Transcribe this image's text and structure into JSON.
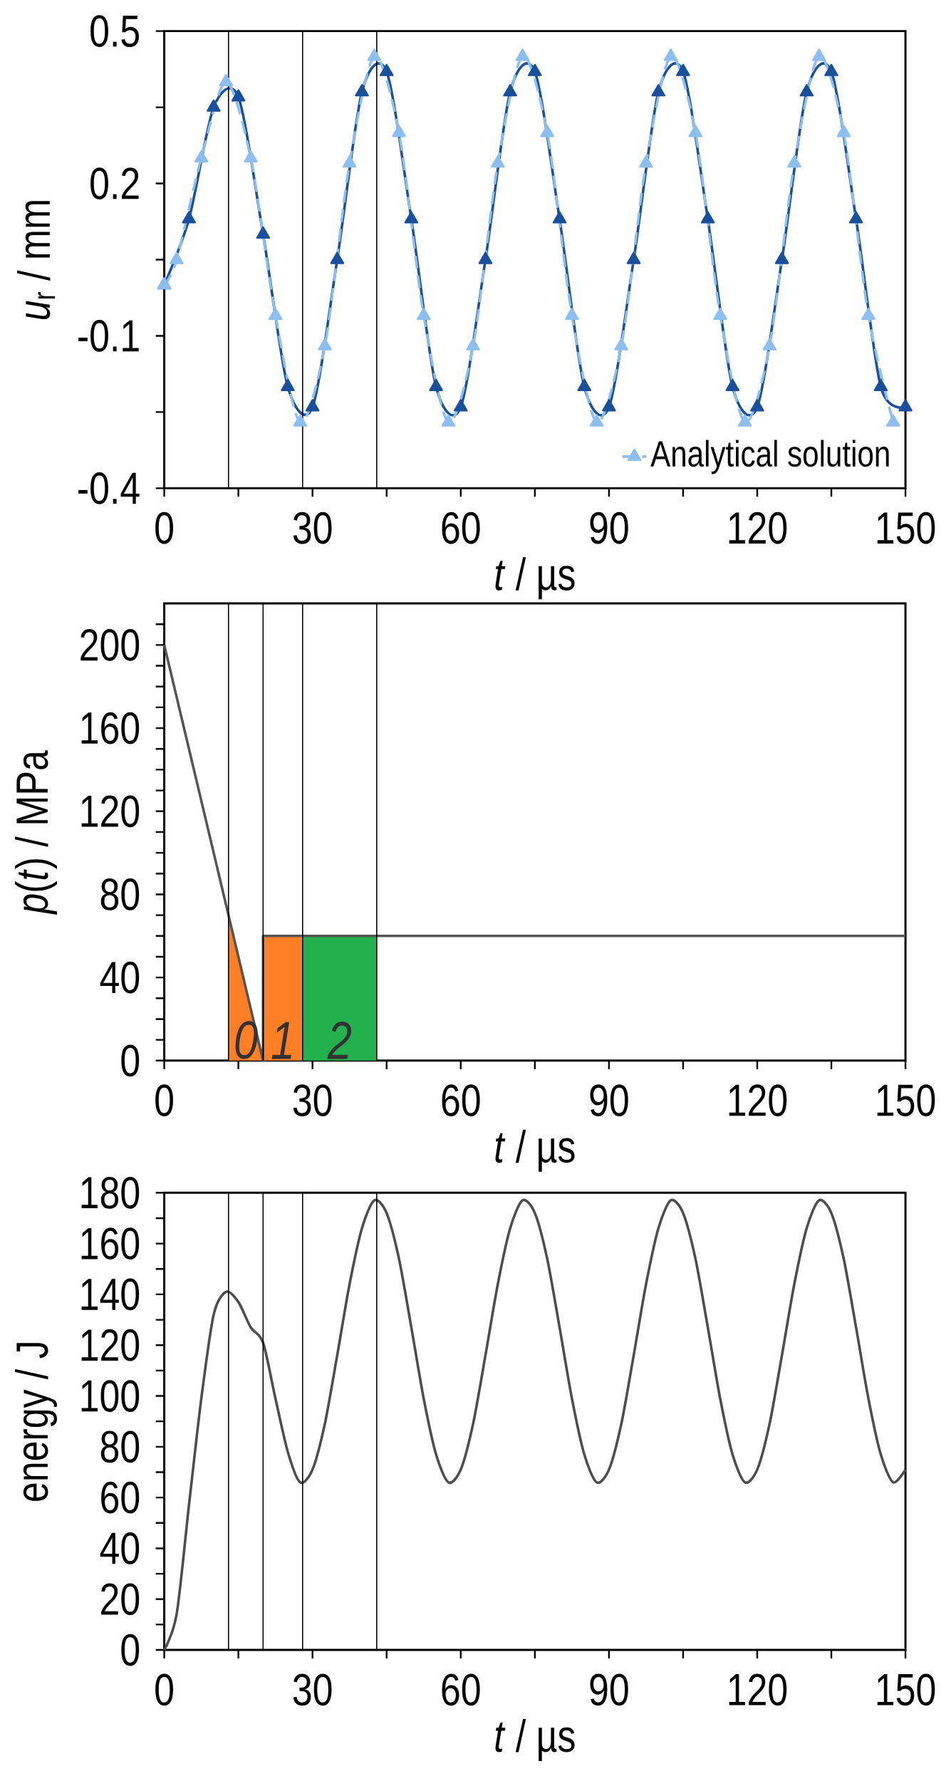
{
  "chart_data": [
    {
      "type": "line",
      "xlabel": "*t* / µs",
      "ylabel": "*u*$_{r}$ / mm",
      "xlim": [
        0,
        150
      ],
      "ylim": [
        -0.4,
        0.5
      ],
      "xticks": [
        0,
        {
          "value": 15,
          "label": null
        },
        30,
        {
          "value": 45,
          "label": null
        },
        60,
        {
          "value": 75,
          "label": null
        },
        90,
        {
          "value": 105,
          "label": null
        },
        120,
        {
          "value": 135,
          "label": null
        },
        150
      ],
      "yticks": [
        -0.4,
        {
          "value": -0.25,
          "label": null
        },
        -0.1,
        {
          "value": 0.05,
          "label": null
        },
        0.2,
        {
          "value": 0.35,
          "label": null
        },
        0.5
      ],
      "legend": "bottom right",
      "ref_lines": [
        {
          "axis": "x",
          "value": 13
        },
        {
          "axis": "x",
          "value": 28
        },
        {
          "axis": "x",
          "value": 43
        }
      ],
      "series": [
        {
          "color": "#1a4f9c",
          "line_style": "solid",
          "marker": "triangle",
          "x": [
            0,
            5,
            10,
            15,
            20,
            25,
            30,
            35,
            40,
            45,
            50,
            55,
            60,
            65,
            70,
            75,
            80,
            85,
            90,
            95,
            100,
            105,
            110,
            115,
            120,
            125,
            130,
            135,
            140,
            145,
            150
          ],
          "values": [
            0.0,
            0.13,
            0.35,
            0.37,
            0.1,
            -0.2,
            -0.24,
            0.05,
            0.38,
            0.42,
            0.13,
            -0.2,
            -0.24,
            0.05,
            0.38,
            0.42,
            0.13,
            -0.2,
            -0.24,
            0.05,
            0.38,
            0.42,
            0.13,
            -0.2,
            -0.24,
            0.05,
            0.38,
            0.42,
            0.13,
            -0.2,
            -0.24
          ]
        },
        {
          "name": "Analytical solution",
          "color": "#8dbef0",
          "line_style": "dashed",
          "marker": "triangle",
          "x": [
            0,
            2.5,
            7.5,
            12.5,
            17.5,
            22.5,
            27.5,
            32.5,
            37.5,
            42.5,
            47.5,
            52.5,
            57.5,
            62.5,
            67.5,
            72.5,
            77.5,
            82.5,
            87.5,
            92.5,
            97.5,
            102.5,
            107.5,
            112.5,
            117.5,
            122.5,
            127.5,
            132.5,
            137.5,
            142.5,
            147.5
          ],
          "values": [
            0.0,
            0.05,
            0.25,
            0.4,
            0.25,
            -0.06,
            -0.27,
            -0.12,
            0.24,
            0.45,
            0.3,
            -0.06,
            -0.27,
            -0.12,
            0.24,
            0.45,
            0.3,
            -0.06,
            -0.27,
            -0.12,
            0.24,
            0.45,
            0.3,
            -0.06,
            -0.27,
            -0.12,
            0.24,
            0.45,
            0.3,
            -0.06,
            -0.27
          ]
        }
      ]
    },
    {
      "type": "line",
      "xlabel": "*t* / µs",
      "ylabel": "*p*(*t*) / MPa",
      "xlim": [
        0,
        150
      ],
      "ylim": [
        0,
        220
      ],
      "xticks": [
        0,
        {
          "value": 15,
          "label": null
        },
        30,
        {
          "value": 45,
          "label": null
        },
        60,
        {
          "value": 75,
          "label": null
        },
        90,
        {
          "value": 105,
          "label": null
        },
        120,
        {
          "value": 135,
          "label": null
        },
        150
      ],
      "yticks": [
        0,
        {
          "value": 10,
          "label": null
        },
        {
          "value": 20,
          "label": null
        },
        {
          "value": 30,
          "label": null
        },
        40,
        {
          "value": 50,
          "label": null
        },
        {
          "value": 60,
          "label": null
        },
        {
          "value": 70,
          "label": null
        },
        80,
        {
          "value": 90,
          "label": null
        },
        {
          "value": 100,
          "label": null
        },
        {
          "value": 110,
          "label": null
        },
        120,
        {
          "value": 130,
          "label": null
        },
        {
          "value": 140,
          "label": null
        },
        {
          "value": 150,
          "label": null
        },
        160,
        {
          "value": 170,
          "label": null
        },
        {
          "value": 180,
          "label": null
        },
        {
          "value": 190,
          "label": null
        },
        200,
        {
          "value": 210,
          "label": null
        }
      ],
      "ref_lines": [
        {
          "axis": "x",
          "value": 13
        },
        {
          "axis": "x",
          "value": 20
        },
        {
          "axis": "x",
          "value": 28
        },
        {
          "axis": "x",
          "value": 43
        }
      ],
      "annotations": [
        "0",
        "1",
        "2"
      ],
      "series": [
        {
          "type": "area",
          "color": "#ff7f27",
          "x": [
            13,
            20
          ],
          "values": [
            70,
            0
          ]
        },
        {
          "type": "area",
          "color": "#ff7f27",
          "x": [
            20,
            28
          ],
          "values": [
            60,
            60
          ]
        },
        {
          "type": "area",
          "color": "#22b14c",
          "x": [
            28,
            43
          ],
          "values": [
            60,
            60
          ]
        },
        {
          "type": "line",
          "color": "#555555",
          "line_style": "solid",
          "x": [
            0,
            20,
            20,
            150
          ],
          "values": [
            200,
            0,
            60,
            60
          ]
        }
      ]
    },
    {
      "type": "line",
      "xlabel": "*t* / µs",
      "ylabel": "energy / J",
      "xlim": [
        0,
        150
      ],
      "ylim": [
        0,
        180
      ],
      "xticks": [
        0,
        {
          "value": 15,
          "label": null
        },
        30,
        {
          "value": 45,
          "label": null
        },
        60,
        {
          "value": 75,
          "label": null
        },
        90,
        {
          "value": 105,
          "label": null
        },
        120,
        {
          "value": 135,
          "label": null
        },
        150
      ],
      "yticks": [
        0,
        {
          "value": 10,
          "label": null
        },
        20,
        {
          "value": 30,
          "label": null
        },
        40,
        {
          "value": 50,
          "label": null
        },
        60,
        {
          "value": 70,
          "label": null
        },
        80,
        {
          "value": 90,
          "label": null
        },
        100,
        {
          "value": 110,
          "label": null
        },
        120,
        {
          "value": 130,
          "label": null
        },
        140,
        {
          "value": 150,
          "label": null
        },
        160,
        {
          "value": 170,
          "label": null
        },
        180
      ],
      "ref_lines": [
        {
          "axis": "x",
          "value": 13
        },
        {
          "axis": "x",
          "value": 20
        },
        {
          "axis": "x",
          "value": 28
        },
        {
          "axis": "x",
          "value": 43
        }
      ],
      "series": [
        {
          "color": "#4d4d4d",
          "line_style": "solid",
          "x": [
            0,
            2.5,
            5,
            7.5,
            10,
            12.5,
            15,
            17.5,
            20,
            22.5,
            25,
            27.5,
            30,
            32.5,
            35,
            37.5,
            40,
            42.5,
            45,
            47.5,
            50,
            52.5,
            55,
            57.5,
            60,
            62.5,
            65,
            67.5,
            70,
            72.5,
            75,
            77.5,
            80,
            82.5,
            85,
            87.5,
            90,
            92.5,
            95,
            97.5,
            100,
            102.5,
            105,
            107.5,
            110,
            112.5,
            115,
            117.5,
            120,
            122.5,
            125,
            127.5,
            130,
            132.5,
            135,
            137.5,
            140,
            142.5,
            145,
            147.5,
            150
          ],
          "values": [
            0,
            14,
            57,
            99,
            132,
            141,
            137,
            127,
            121,
            99,
            78,
            66,
            71,
            89,
            116,
            144,
            166,
            177,
            172,
            154,
            127,
            99,
            77,
            66,
            71,
            89,
            116,
            144,
            166,
            177,
            172,
            154,
            127,
            99,
            77,
            66,
            71,
            89,
            116,
            144,
            166,
            177,
            172,
            154,
            127,
            99,
            77,
            66,
            71,
            89,
            116,
            144,
            166,
            177,
            172,
            154,
            127,
            99,
            77,
            66,
            71
          ]
        }
      ]
    }
  ]
}
